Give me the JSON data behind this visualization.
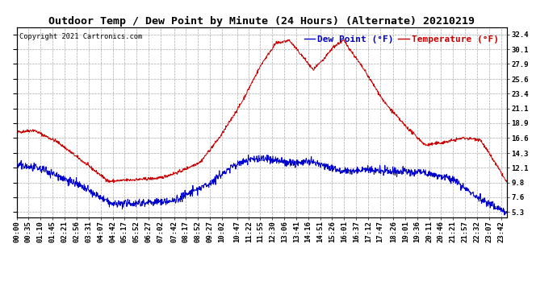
{
  "title": "Outdoor Temp / Dew Point by Minute (24 Hours) (Alternate) 20210219",
  "copyright": "Copyright 2021 Cartronics.com",
  "legend_dew": "Dew Point (°F)",
  "legend_temp": "Temperature (°F)",
  "ylabel_right_ticks": [
    5.3,
    7.6,
    9.8,
    12.1,
    14.3,
    16.6,
    18.9,
    21.1,
    23.4,
    25.6,
    27.9,
    30.1,
    32.4
  ],
  "xtick_labels": [
    "00:00",
    "00:35",
    "01:10",
    "01:45",
    "02:21",
    "02:56",
    "03:31",
    "04:07",
    "04:42",
    "05:17",
    "05:52",
    "06:27",
    "07:02",
    "07:42",
    "08:17",
    "08:52",
    "09:27",
    "10:02",
    "10:47",
    "11:22",
    "11:55",
    "12:30",
    "13:06",
    "13:41",
    "14:16",
    "14:51",
    "15:26",
    "16:01",
    "16:37",
    "17:12",
    "17:47",
    "18:26",
    "19:01",
    "19:36",
    "20:11",
    "20:46",
    "21:21",
    "21:57",
    "22:32",
    "23:07",
    "23:42"
  ],
  "temp_color": "#cc0000",
  "dew_color": "#0000cc",
  "background_color": "#ffffff",
  "grid_color": "#aaaaaa",
  "title_fontsize": 9.5,
  "tick_fontsize": 6.5,
  "legend_fontsize": 8,
  "ymin": 4.5,
  "ymax": 33.5
}
